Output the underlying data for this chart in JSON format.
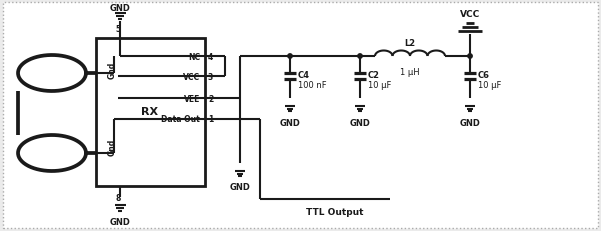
{
  "figsize": [
    6.01,
    2.32
  ],
  "dpi": 100,
  "bg_color": "#ebebeb",
  "border_color": "#aaaaaa",
  "line_color": "#1a1a1a",
  "lw": 1.5,
  "labels": {
    "GND_top": "GND",
    "GND_bot": "GND",
    "GND_1": "GND",
    "GND_2": "GND",
    "GND_3": "GND",
    "GND_4": "GND",
    "pin5": "5",
    "pin8": "8",
    "gnd_left_top": "Gnd",
    "gnd_left_bot": "Gnd",
    "rx_label": "RX",
    "nc_label": "NC",
    "vcc_label": "VCC",
    "vee_label": "VEE",
    "dataout_label": "Data Out",
    "pin4": "4",
    "pin3": "3",
    "pin2": "2",
    "pin1": "1",
    "c4_label": "C4",
    "c4_val": "100 nF",
    "c2_label": "C2",
    "c2_val": "10 μF",
    "l2_label": "L2",
    "l2_val": "1 μH",
    "c6_label": "C6",
    "c6_val": "10 μF",
    "vcc_top": "VCC",
    "ttl_label": "TTL Output"
  }
}
